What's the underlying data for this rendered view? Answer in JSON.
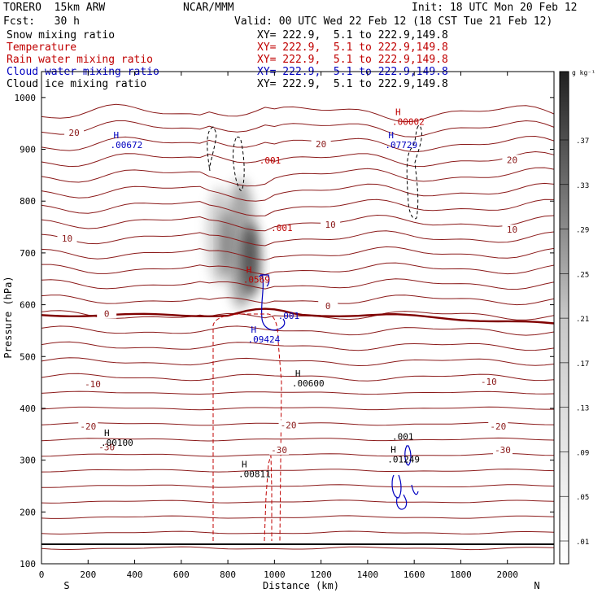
{
  "header": {
    "model": "TORERO  15km ARW",
    "fcst": "Fcst:   30 h",
    "org": "NCAR/MMM",
    "init": "Init: 18 UTC Mon 20 Feb 12",
    "valid": "Valid: 00 UTC Wed 22 Feb 12 (18 CST Tue 21 Feb 12)"
  },
  "legend": [
    {
      "name": "Snow mixing ratio",
      "color": "#000000",
      "xy": "XY= 222.9,  5.1 to 222.9,149.8"
    },
    {
      "name": "Temperature",
      "color": "#c00000",
      "xy": "XY= 222.9,  5.1 to 222.9,149.8"
    },
    {
      "name": "Rain water mixing ratio",
      "color": "#c00000",
      "xy": "XY= 222.9,  5.1 to 222.9,149.8"
    },
    {
      "name": "Cloud water mixing ratio",
      "color": "#0000c0",
      "xy": "XY= 222.9,  5.1 to 222.9,149.8"
    },
    {
      "name": "Cloud ice mixing ratio",
      "color": "#000000",
      "xy": "XY= 222.9,  5.1 to 222.9,149.8"
    }
  ],
  "chart_data": {
    "type": "cross-section",
    "xlabel": "Distance (km)",
    "ylabel": "Pressure (hPa)",
    "xlim": [
      0,
      2200
    ],
    "ylim": [
      1050,
      100
    ],
    "x_ticks": [
      0,
      200,
      400,
      600,
      800,
      1000,
      1200,
      1400,
      1600,
      1800,
      2000
    ],
    "y_ticks": [
      100,
      200,
      300,
      400,
      500,
      600,
      700,
      800,
      900,
      1000
    ],
    "x_end_labels": {
      "left": "S",
      "right": "N"
    },
    "colorbar": {
      "unit": "g kg⁻¹",
      "labels": [
        ".37",
        ".33",
        ".29",
        ".25",
        ".21",
        ".17",
        ".13",
        ".09",
        ".05",
        ".01"
      ]
    },
    "temperature_labels": [
      {
        "text": "-30",
        "x": 280,
        "p": 325
      },
      {
        "text": "-30",
        "x": 1020,
        "p": 320
      },
      {
        "text": "-30",
        "x": 1980,
        "p": 320
      },
      {
        "text": "-20",
        "x": 200,
        "p": 365
      },
      {
        "text": "-20",
        "x": 1060,
        "p": 368
      },
      {
        "text": "-20",
        "x": 1960,
        "p": 365
      },
      {
        "text": "-10",
        "x": 220,
        "p": 447
      },
      {
        "text": "-10",
        "x": 1920,
        "p": 452
      },
      {
        "text": "0",
        "x": 280,
        "p": 583
      },
      {
        "text": "0",
        "x": 1230,
        "p": 598
      },
      {
        "text": "10",
        "x": 110,
        "p": 728
      },
      {
        "text": "10",
        "x": 1240,
        "p": 755
      },
      {
        "text": "10",
        "x": 2020,
        "p": 745
      },
      {
        "text": "20",
        "x": 140,
        "p": 932
      },
      {
        "text": "20",
        "x": 1200,
        "p": 910
      },
      {
        "text": "20",
        "x": 2020,
        "p": 880
      }
    ],
    "maxima_labels": [
      {
        "mark": "H",
        "value": ".00100",
        "x": 290,
        "p": 340,
        "color": "#000000"
      },
      {
        "mark": "H",
        "value": ".00811",
        "x": 880,
        "p": 280,
        "color": "#000000"
      },
      {
        "mark": "H",
        "value": ".00600",
        "x": 1110,
        "p": 455,
        "color": "#000000"
      },
      {
        "mark": "H",
        "value": ".01249",
        "x": 1520,
        "p": 308,
        "color": "#000000"
      },
      {
        "mark": "",
        "value": ".001",
        "x": 1540,
        "p": 352,
        "color": "#000000"
      },
      {
        "mark": "H",
        "value": ".09424",
        "x": 920,
        "p": 540,
        "color": "#0000c0"
      },
      {
        "mark": "",
        "value": ".001",
        "x": 1050,
        "p": 585,
        "color": "#0000c0"
      },
      {
        "mark": "H",
        "value": ".0569",
        "x": 900,
        "p": 655,
        "color": "#c00000"
      },
      {
        "mark": "",
        "value": ".001",
        "x": 1020,
        "p": 755,
        "color": "#c00000"
      },
      {
        "mark": "",
        "value": ".001",
        "x": 970,
        "p": 885,
        "color": "#c00000"
      },
      {
        "mark": "H",
        "value": ".00672",
        "x": 330,
        "p": 915,
        "color": "#0000c0"
      },
      {
        "mark": "H",
        "value": ".07729",
        "x": 1510,
        "p": 915,
        "color": "#0000c0"
      },
      {
        "mark": "H",
        "value": ".00002",
        "x": 1540,
        "p": 960,
        "color": "#c00000"
      }
    ]
  }
}
